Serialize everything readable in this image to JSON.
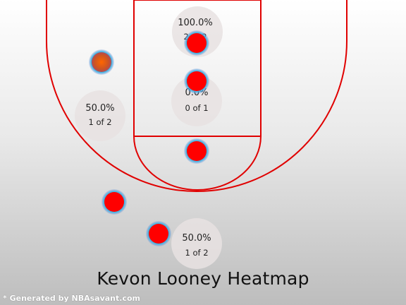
{
  "title": "Kevon Looney Heatmap",
  "credit": "* Generated by NBAsavant.com",
  "colors": {
    "court_line": "#e00000",
    "shot_fill": "#ff0000",
    "zone_circle": "#e8e2e2",
    "background_top": "#ffffff",
    "background_bottom": "#bdbdbd"
  },
  "chart_data": {
    "type": "scatter",
    "title": "Kevon Looney Heatmap",
    "zones": [
      {
        "name": "paint-top",
        "pct": "100.0%",
        "made_of": "2 of 2"
      },
      {
        "name": "left-midrange",
        "pct": "50.0%",
        "made_of": "1 of 2"
      },
      {
        "name": "paint-middle",
        "pct": "0.0%",
        "made_of": "0 of 1"
      },
      {
        "name": "bottom-center",
        "pct": "50.0%",
        "made_of": "1 of 2"
      }
    ],
    "shots": [
      {
        "x": -150,
        "y": 250
      },
      {
        "x": 0,
        "y": 280
      },
      {
        "x": 0,
        "y": 220
      },
      {
        "x": 0,
        "y": 110
      },
      {
        "x": -130,
        "y": 30
      },
      {
        "x": -60,
        "y": -20
      }
    ]
  }
}
